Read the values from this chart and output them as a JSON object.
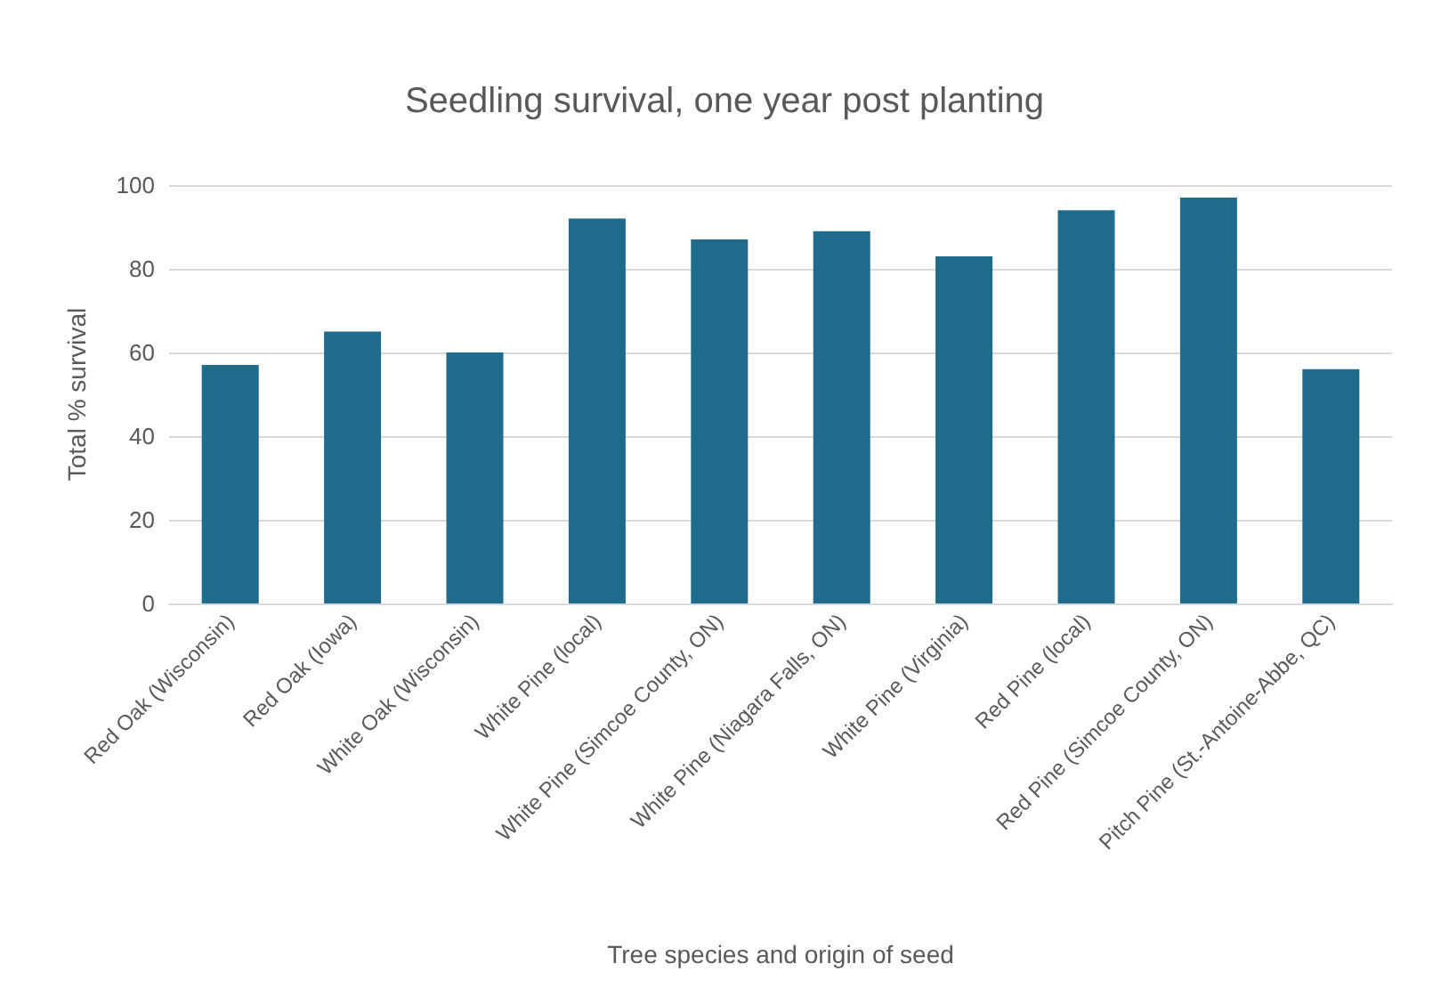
{
  "chart_data": {
    "type": "bar",
    "title": "Seedling survival, one year post planting",
    "xlabel": "Tree species and origin of seed",
    "ylabel": "Total % survival",
    "categories": [
      "Red Oak (Wisconsin)",
      "Red Oak (Iowa)",
      "White Oak (Wisconsin)",
      "White Pine (local)",
      "White Pine (Simcoe County, ON)",
      "White Pine (Niagara Falls, ON)",
      "White Pine (Virginia)",
      "Red Pine (local)",
      "Red Pine (Simcoe County, ON)",
      "Pitch Pine (St.-Antoine-Abbe, QC)"
    ],
    "values": [
      57,
      65,
      60,
      92,
      87,
      89,
      83,
      94,
      97,
      56
    ],
    "color": "#1f6b8c",
    "ylim": [
      0,
      100
    ],
    "yticks": [
      0,
      20,
      40,
      60,
      80,
      100
    ],
    "grid": "y"
  }
}
